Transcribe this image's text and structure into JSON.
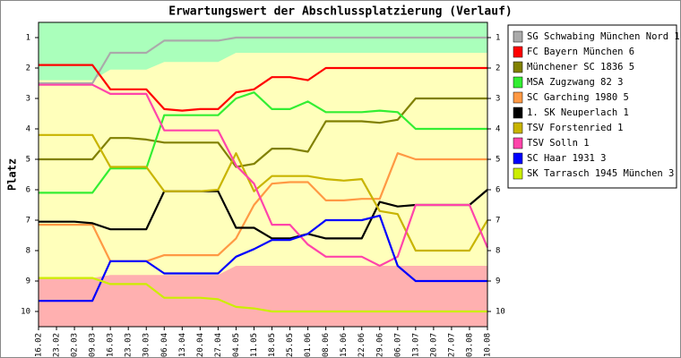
{
  "chart_data": {
    "type": "line",
    "title": "Erwartungswert der Abschlussplatzierung (Verlauf)",
    "y_label": "Platz",
    "categories": [
      "16.02",
      "23.02",
      "02.03",
      "09.03",
      "16.03",
      "23.03",
      "30.03",
      "06.04",
      "13.04",
      "20.04",
      "27.04",
      "04.05",
      "11.05",
      "18.05",
      "25.05",
      "01.06",
      "08.06",
      "15.06",
      "22.06",
      "29.06",
      "06.07",
      "13.07",
      "20.07",
      "27.07",
      "03.08",
      "10.08"
    ],
    "ylim": [
      10.5,
      0.5
    ],
    "yticks": [
      1,
      2,
      3,
      4,
      5,
      6,
      7,
      8,
      9,
      10
    ],
    "plot_color": "#ffffbb",
    "upper_band": {
      "color": "#aaffbb",
      "values": [
        2.4,
        2.4,
        2.4,
        2.4,
        2.05,
        2.05,
        2.05,
        1.8,
        1.8,
        1.8,
        1.8,
        1.5,
        1.5,
        1.5,
        1.5,
        1.5,
        1.5,
        1.5,
        1.5,
        1.5,
        1.5,
        1.5,
        1.5,
        1.5,
        1.5,
        1.5
      ]
    },
    "lower_band": {
      "color": "#ffb0b0",
      "values": [
        8.9,
        8.9,
        8.9,
        8.9,
        8.8,
        8.8,
        8.8,
        8.8,
        8.8,
        8.8,
        8.8,
        8.5,
        8.5,
        8.5,
        8.5,
        8.5,
        8.5,
        8.5,
        8.5,
        8.5,
        8.5,
        8.5,
        8.5,
        8.5,
        8.5,
        8.5
      ]
    },
    "series": [
      {
        "name": "SG Schwabing München Nord 1",
        "color": "#aaaaaa",
        "values": [
          2.5,
          2.5,
          2.5,
          2.5,
          1.5,
          1.5,
          1.5,
          1.1,
          1.1,
          1.1,
          1.1,
          1.0,
          1.0,
          1.0,
          1.0,
          1.0,
          1.0,
          1.0,
          1.0,
          1.0,
          1.0,
          1.0,
          1.0,
          1.0,
          1.0,
          1.0
        ]
      },
      {
        "name": "FC Bayern München 6",
        "color": "#ff0000",
        "values": [
          1.9,
          1.9,
          1.9,
          1.9,
          2.7,
          2.7,
          2.7,
          3.35,
          3.4,
          3.35,
          3.35,
          2.8,
          2.7,
          2.3,
          2.3,
          2.4,
          2.0,
          2.0,
          2.0,
          2.0,
          2.0,
          2.0,
          2.0,
          2.0,
          2.0,
          2.0
        ]
      },
      {
        "name": "Münchener SC 1836 5",
        "color": "#808000",
        "values": [
          5.0,
          5.0,
          5.0,
          5.0,
          4.3,
          4.3,
          4.35,
          4.45,
          4.45,
          4.45,
          4.45,
          5.25,
          5.15,
          4.65,
          4.65,
          4.75,
          3.75,
          3.75,
          3.75,
          3.8,
          3.7,
          3.0,
          3.0,
          3.0,
          3.0,
          3.0
        ]
      },
      {
        "name": "MSA Zugzwang 82 3",
        "color": "#33ee33",
        "values": [
          6.1,
          6.1,
          6.1,
          6.1,
          5.3,
          5.3,
          5.3,
          3.55,
          3.55,
          3.55,
          3.55,
          3.0,
          2.8,
          3.35,
          3.35,
          3.1,
          3.45,
          3.45,
          3.45,
          3.4,
          3.45,
          4.0,
          4.0,
          4.0,
          4.0,
          4.0
        ]
      },
      {
        "name": "SC Garching 1980 5",
        "color": "#ff9944",
        "values": [
          7.15,
          7.15,
          7.15,
          7.15,
          8.35,
          8.35,
          8.35,
          8.15,
          8.15,
          8.15,
          8.15,
          7.6,
          6.5,
          5.8,
          5.75,
          5.75,
          6.35,
          6.35,
          6.3,
          6.3,
          4.8,
          5.0,
          5.0,
          5.0,
          5.0,
          5.0
        ]
      },
      {
        "name": "1. SK Neuperlach 1",
        "color": "#000000",
        "values": [
          7.05,
          7.05,
          7.05,
          7.1,
          7.3,
          7.3,
          7.3,
          6.05,
          6.05,
          6.05,
          6.05,
          7.25,
          7.25,
          7.6,
          7.6,
          7.45,
          7.6,
          7.6,
          7.6,
          6.4,
          6.55,
          6.5,
          6.5,
          6.5,
          6.5,
          6.0
        ]
      },
      {
        "name": "TSV Forstenried 1",
        "color": "#c8b400",
        "values": [
          4.2,
          4.2,
          4.2,
          4.2,
          5.25,
          5.25,
          5.25,
          6.05,
          6.05,
          6.05,
          6.0,
          4.8,
          6.05,
          5.55,
          5.55,
          5.55,
          5.65,
          5.7,
          5.65,
          6.7,
          6.8,
          8.0,
          8.0,
          8.0,
          8.0,
          7.0
        ]
      },
      {
        "name": "TSV Solln 1",
        "color": "#ff44aa",
        "values": [
          2.55,
          2.55,
          2.55,
          2.55,
          2.85,
          2.85,
          2.85,
          4.05,
          4.05,
          4.05,
          4.05,
          5.2,
          5.8,
          7.15,
          7.15,
          7.8,
          8.2,
          8.2,
          8.2,
          8.5,
          8.2,
          6.5,
          6.5,
          6.5,
          6.5,
          7.9
        ]
      },
      {
        "name": "SC Haar 1931 3",
        "color": "#0000ff",
        "values": [
          9.65,
          9.65,
          9.65,
          9.65,
          8.35,
          8.35,
          8.35,
          8.75,
          8.75,
          8.75,
          8.75,
          8.2,
          7.95,
          7.65,
          7.65,
          7.45,
          7.0,
          7.0,
          7.0,
          6.85,
          8.5,
          9.0,
          9.0,
          9.0,
          9.0,
          9.0
        ]
      },
      {
        "name": "SK Tarrasch 1945 München 3",
        "color": "#ccee00",
        "values": [
          8.9,
          8.9,
          8.9,
          8.9,
          9.1,
          9.1,
          9.1,
          9.55,
          9.55,
          9.55,
          9.6,
          9.85,
          9.9,
          10.0,
          10.0,
          10.0,
          10.0,
          10.0,
          10.0,
          10.0,
          10.0,
          10.0,
          10.0,
          10.0,
          10.0,
          10.0
        ]
      }
    ]
  }
}
